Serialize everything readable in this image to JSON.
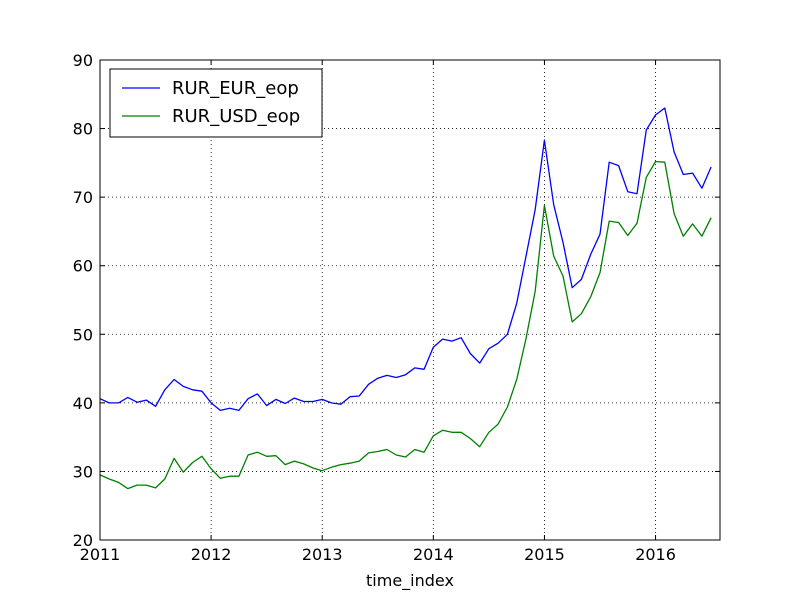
{
  "chart_data": {
    "type": "line",
    "title": "",
    "xlabel": "time_index",
    "ylabel": "",
    "xlim": [
      2011.0,
      2016.58
    ],
    "ylim": [
      20,
      90
    ],
    "xticks": [
      2011,
      2012,
      2013,
      2014,
      2015,
      2016
    ],
    "yticks": [
      20,
      30,
      40,
      50,
      60,
      70,
      80,
      90
    ],
    "grid": true,
    "legend": "top-left",
    "series": [
      {
        "name": "RUR_EUR_eop",
        "color": "#0000ff",
        "x": [
          2011.0,
          2011.083,
          2011.167,
          2011.25,
          2011.333,
          2011.417,
          2011.5,
          2011.583,
          2011.667,
          2011.75,
          2011.833,
          2011.917,
          2012.0,
          2012.083,
          2012.167,
          2012.25,
          2012.333,
          2012.417,
          2012.5,
          2012.583,
          2012.667,
          2012.75,
          2012.833,
          2012.917,
          2013.0,
          2013.083,
          2013.167,
          2013.25,
          2013.333,
          2013.417,
          2013.5,
          2013.583,
          2013.667,
          2013.75,
          2013.833,
          2013.917,
          2014.0,
          2014.083,
          2014.167,
          2014.25,
          2014.333,
          2014.417,
          2014.5,
          2014.583,
          2014.667,
          2014.75,
          2014.833,
          2014.917,
          2015.0,
          2015.083,
          2015.167,
          2015.25,
          2015.333,
          2015.417,
          2015.5,
          2015.583,
          2015.667,
          2015.75,
          2015.833,
          2015.917,
          2016.0,
          2016.083,
          2016.167,
          2016.25,
          2016.333,
          2016.417,
          2016.5
        ],
        "values": [
          40.6,
          40.0,
          40.0,
          40.8,
          40.1,
          40.4,
          39.5,
          41.9,
          43.4,
          42.4,
          41.9,
          41.7,
          40.0,
          38.9,
          39.2,
          38.9,
          40.6,
          41.3,
          39.6,
          40.5,
          39.9,
          40.7,
          40.2,
          40.2,
          40.5,
          40.0,
          39.8,
          40.9,
          41.0,
          42.7,
          43.6,
          44.0,
          43.7,
          44.1,
          45.1,
          44.9,
          48.1,
          49.3,
          49.0,
          49.5,
          47.2,
          45.8,
          47.9,
          48.7,
          50.0,
          54.5,
          61.3,
          68.2,
          78.3,
          68.9,
          63.4,
          56.8,
          58.0,
          61.7,
          64.6,
          75.1,
          74.6,
          70.8,
          70.5,
          79.8,
          82.0,
          83.0,
          76.6,
          73.3,
          73.5,
          71.3,
          74.4
        ]
      },
      {
        "name": "RUR_USD_eop",
        "color": "#008000",
        "x": [
          2011.0,
          2011.083,
          2011.167,
          2011.25,
          2011.333,
          2011.417,
          2011.5,
          2011.583,
          2011.667,
          2011.75,
          2011.833,
          2011.917,
          2012.0,
          2012.083,
          2012.167,
          2012.25,
          2012.333,
          2012.417,
          2012.5,
          2012.583,
          2012.667,
          2012.75,
          2012.833,
          2012.917,
          2013.0,
          2013.083,
          2013.167,
          2013.25,
          2013.333,
          2013.417,
          2013.5,
          2013.583,
          2013.667,
          2013.75,
          2013.833,
          2013.917,
          2014.0,
          2014.083,
          2014.167,
          2014.25,
          2014.333,
          2014.417,
          2014.5,
          2014.583,
          2014.667,
          2014.75,
          2014.833,
          2014.917,
          2015.0,
          2015.083,
          2015.167,
          2015.25,
          2015.333,
          2015.417,
          2015.5,
          2015.583,
          2015.667,
          2015.75,
          2015.833,
          2015.917,
          2016.0,
          2016.083,
          2016.167,
          2016.25,
          2016.333,
          2016.417,
          2016.5
        ],
        "values": [
          29.5,
          28.9,
          28.4,
          27.5,
          28.0,
          28.0,
          27.6,
          28.9,
          31.9,
          29.9,
          31.3,
          32.2,
          30.4,
          29.0,
          29.3,
          29.3,
          32.4,
          32.8,
          32.2,
          32.3,
          31.0,
          31.5,
          31.1,
          30.5,
          30.1,
          30.6,
          31.0,
          31.2,
          31.5,
          32.7,
          32.9,
          33.2,
          32.4,
          32.1,
          33.2,
          32.8,
          35.2,
          36.0,
          35.7,
          35.7,
          34.8,
          33.6,
          35.7,
          36.9,
          39.4,
          43.4,
          49.3,
          56.3,
          68.8,
          61.4,
          58.5,
          51.8,
          53.0,
          55.5,
          59.0,
          66.5,
          66.3,
          64.4,
          66.2,
          72.9,
          75.2,
          75.1,
          67.6,
          64.3,
          66.1,
          64.3,
          67.0
        ]
      }
    ]
  }
}
